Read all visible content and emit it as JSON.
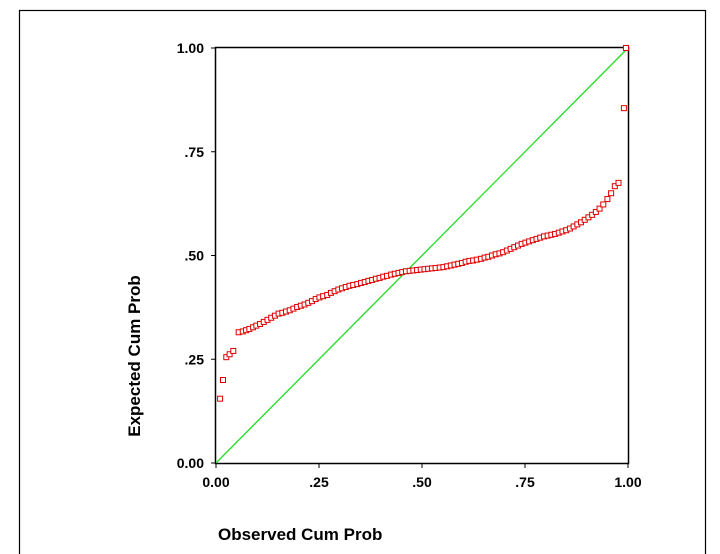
{
  "chart_data": {
    "type": "scatter",
    "title": "",
    "xlabel": "Observed Cum Prob",
    "ylabel": "Expected Cum Prob",
    "xlim": [
      0,
      1
    ],
    "ylim": [
      0,
      1
    ],
    "x_ticks": [
      {
        "value": 0,
        "label": "0.00"
      },
      {
        "value": 0.25,
        "label": ".25"
      },
      {
        "value": 0.5,
        "label": ".50"
      },
      {
        "value": 0.75,
        "label": ".75"
      },
      {
        "value": 1,
        "label": "1.00"
      }
    ],
    "y_ticks": [
      {
        "value": 0,
        "label": "0.00"
      },
      {
        "value": 0.25,
        "label": ".25"
      },
      {
        "value": 0.5,
        "label": ".50"
      },
      {
        "value": 0.75,
        "label": ".75"
      },
      {
        "value": 1,
        "label": "1.00"
      }
    ],
    "grid": false,
    "reference_line": {
      "from": [
        0,
        0
      ],
      "to": [
        1,
        1
      ],
      "color": "#22dd22"
    },
    "marker": {
      "shape": "square",
      "color": "#dd0000",
      "fill": "none"
    },
    "points": [
      {
        "x": 0.01,
        "y": 0.155
      },
      {
        "x": 0.017,
        "y": 0.2
      },
      {
        "x": 0.025,
        "y": 0.255
      },
      {
        "x": 0.033,
        "y": 0.262
      },
      {
        "x": 0.042,
        "y": 0.27
      },
      {
        "x": 0.055,
        "y": 0.315
      },
      {
        "x": 0.065,
        "y": 0.317
      },
      {
        "x": 0.073,
        "y": 0.32
      },
      {
        "x": 0.081,
        "y": 0.323
      },
      {
        "x": 0.09,
        "y": 0.327
      },
      {
        "x": 0.098,
        "y": 0.331
      },
      {
        "x": 0.107,
        "y": 0.335
      },
      {
        "x": 0.116,
        "y": 0.34
      },
      {
        "x": 0.125,
        "y": 0.345
      },
      {
        "x": 0.134,
        "y": 0.35
      },
      {
        "x": 0.143,
        "y": 0.355
      },
      {
        "x": 0.152,
        "y": 0.36
      },
      {
        "x": 0.161,
        "y": 0.362
      },
      {
        "x": 0.17,
        "y": 0.365
      },
      {
        "x": 0.179,
        "y": 0.368
      },
      {
        "x": 0.188,
        "y": 0.372
      },
      {
        "x": 0.197,
        "y": 0.376
      },
      {
        "x": 0.206,
        "y": 0.379
      },
      {
        "x": 0.215,
        "y": 0.382
      },
      {
        "x": 0.224,
        "y": 0.386
      },
      {
        "x": 0.233,
        "y": 0.39
      },
      {
        "x": 0.242,
        "y": 0.395
      },
      {
        "x": 0.251,
        "y": 0.399
      },
      {
        "x": 0.26,
        "y": 0.402
      },
      {
        "x": 0.27,
        "y": 0.405
      },
      {
        "x": 0.279,
        "y": 0.41
      },
      {
        "x": 0.288,
        "y": 0.414
      },
      {
        "x": 0.297,
        "y": 0.418
      },
      {
        "x": 0.306,
        "y": 0.421
      },
      {
        "x": 0.315,
        "y": 0.424
      },
      {
        "x": 0.324,
        "y": 0.427
      },
      {
        "x": 0.333,
        "y": 0.429
      },
      {
        "x": 0.343,
        "y": 0.431
      },
      {
        "x": 0.352,
        "y": 0.434
      },
      {
        "x": 0.361,
        "y": 0.436
      },
      {
        "x": 0.37,
        "y": 0.439
      },
      {
        "x": 0.379,
        "y": 0.441
      },
      {
        "x": 0.388,
        "y": 0.444
      },
      {
        "x": 0.397,
        "y": 0.446
      },
      {
        "x": 0.406,
        "y": 0.449
      },
      {
        "x": 0.415,
        "y": 0.451
      },
      {
        "x": 0.425,
        "y": 0.454
      },
      {
        "x": 0.434,
        "y": 0.456
      },
      {
        "x": 0.443,
        "y": 0.458
      },
      {
        "x": 0.452,
        "y": 0.46
      },
      {
        "x": 0.461,
        "y": 0.462
      },
      {
        "x": 0.47,
        "y": 0.463
      },
      {
        "x": 0.479,
        "y": 0.464
      },
      {
        "x": 0.488,
        "y": 0.465
      },
      {
        "x": 0.497,
        "y": 0.466
      },
      {
        "x": 0.506,
        "y": 0.467
      },
      {
        "x": 0.515,
        "y": 0.468
      },
      {
        "x": 0.524,
        "y": 0.469
      },
      {
        "x": 0.533,
        "y": 0.47
      },
      {
        "x": 0.543,
        "y": 0.471
      },
      {
        "x": 0.552,
        "y": 0.472
      },
      {
        "x": 0.561,
        "y": 0.474
      },
      {
        "x": 0.57,
        "y": 0.476
      },
      {
        "x": 0.579,
        "y": 0.478
      },
      {
        "x": 0.588,
        "y": 0.48
      },
      {
        "x": 0.597,
        "y": 0.482
      },
      {
        "x": 0.606,
        "y": 0.485
      },
      {
        "x": 0.615,
        "y": 0.487
      },
      {
        "x": 0.624,
        "y": 0.488
      },
      {
        "x": 0.633,
        "y": 0.49
      },
      {
        "x": 0.643,
        "y": 0.492
      },
      {
        "x": 0.652,
        "y": 0.495
      },
      {
        "x": 0.661,
        "y": 0.497
      },
      {
        "x": 0.67,
        "y": 0.5
      },
      {
        "x": 0.679,
        "y": 0.503
      },
      {
        "x": 0.688,
        "y": 0.505
      },
      {
        "x": 0.697,
        "y": 0.508
      },
      {
        "x": 0.706,
        "y": 0.512
      },
      {
        "x": 0.715,
        "y": 0.516
      },
      {
        "x": 0.724,
        "y": 0.52
      },
      {
        "x": 0.733,
        "y": 0.524
      },
      {
        "x": 0.742,
        "y": 0.528
      },
      {
        "x": 0.751,
        "y": 0.531
      },
      {
        "x": 0.76,
        "y": 0.534
      },
      {
        "x": 0.769,
        "y": 0.537
      },
      {
        "x": 0.778,
        "y": 0.54
      },
      {
        "x": 0.787,
        "y": 0.543
      },
      {
        "x": 0.796,
        "y": 0.546
      },
      {
        "x": 0.805,
        "y": 0.548
      },
      {
        "x": 0.814,
        "y": 0.55
      },
      {
        "x": 0.823,
        "y": 0.552
      },
      {
        "x": 0.832,
        "y": 0.555
      },
      {
        "x": 0.841,
        "y": 0.558
      },
      {
        "x": 0.85,
        "y": 0.561
      },
      {
        "x": 0.859,
        "y": 0.565
      },
      {
        "x": 0.868,
        "y": 0.57
      },
      {
        "x": 0.877,
        "y": 0.575
      },
      {
        "x": 0.886,
        "y": 0.58
      },
      {
        "x": 0.895,
        "y": 0.586
      },
      {
        "x": 0.904,
        "y": 0.592
      },
      {
        "x": 0.913,
        "y": 0.598
      },
      {
        "x": 0.922,
        "y": 0.605
      },
      {
        "x": 0.931,
        "y": 0.613
      },
      {
        "x": 0.94,
        "y": 0.623
      },
      {
        "x": 0.95,
        "y": 0.636
      },
      {
        "x": 0.959,
        "y": 0.65
      },
      {
        "x": 0.968,
        "y": 0.667
      },
      {
        "x": 0.977,
        "y": 0.675
      },
      {
        "x": 0.99,
        "y": 0.855
      },
      {
        "x": 0.995,
        "y": 1.0
      }
    ]
  }
}
